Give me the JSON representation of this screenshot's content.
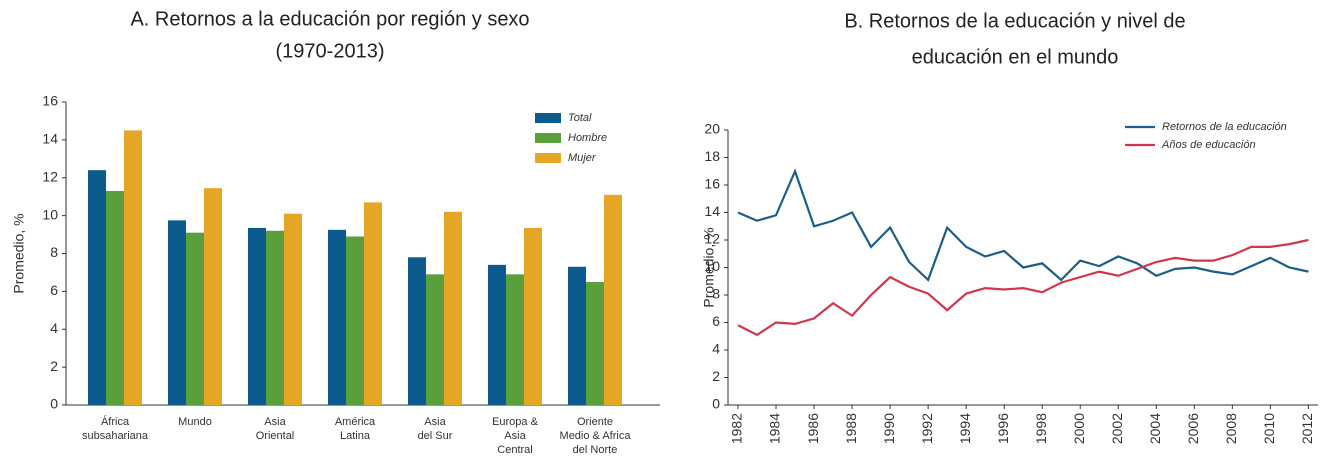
{
  "chart_data": [
    {
      "type": "bar",
      "title": [
        "A. Retornos a la educación por región y sexo",
        "(1970-2013)"
      ],
      "y_label": "Promedio, %",
      "categories": [
        [
          "África",
          "subsahariana"
        ],
        [
          "Mundo"
        ],
        [
          "Asia",
          "Oriental"
        ],
        [
          "América",
          "Latina"
        ],
        [
          "Asia",
          "del Sur"
        ],
        [
          "Europa &",
          "Asia",
          "Central"
        ],
        [
          "Oriente",
          "Medio & Africa",
          "del Norte"
        ]
      ],
      "series": [
        {
          "name": "Total",
          "color": "#0b5c8c",
          "values": [
            12.4,
            9.75,
            9.35,
            9.25,
            7.8,
            7.4,
            7.3
          ]
        },
        {
          "name": "Hombre",
          "color": "#5b9f3c",
          "values": [
            11.3,
            9.1,
            9.2,
            8.9,
            6.9,
            6.9,
            6.5
          ]
        },
        {
          "name": "Mujer",
          "color": "#e6a625",
          "values": [
            14.5,
            11.45,
            10.1,
            10.7,
            10.2,
            9.35,
            11.1
          ]
        }
      ],
      "ylim": [
        0,
        16
      ],
      "yticks": [
        0,
        2,
        4,
        6,
        8,
        10,
        12,
        14,
        16
      ],
      "legend": "upper right"
    },
    {
      "type": "line",
      "title": [
        "B. Retornos de la educación y nivel de",
        "educación en el mundo"
      ],
      "y_label": "Promedio, %",
      "x": [
        1982,
        1983,
        1984,
        1985,
        1986,
        1987,
        1988,
        1989,
        1990,
        1991,
        1992,
        1993,
        1994,
        1995,
        1996,
        1997,
        1998,
        1999,
        2000,
        2001,
        2002,
        2003,
        2004,
        2005,
        2006,
        2007,
        2008,
        2009,
        2010,
        2011,
        2012
      ],
      "series": [
        {
          "name": "Retornos de la educación",
          "color": "#1b5e8a",
          "values": [
            14,
            13.4,
            13.8,
            17,
            13,
            13.4,
            14,
            11.5,
            12.9,
            10.4,
            9.1,
            12.9,
            11.5,
            10.8,
            11.2,
            10,
            10.3,
            9.1,
            10.5,
            10.1,
            10.8,
            10.3,
            9.4,
            9.9,
            10,
            9.7,
            9.5,
            10.1,
            10.7,
            10,
            9.7
          ]
        },
        {
          "name": "Años de educación",
          "color": "#d2364b",
          "values": [
            5.8,
            5.1,
            6.0,
            5.9,
            6.3,
            7.4,
            6.5,
            8.0,
            9.3,
            8.6,
            8.1,
            6.9,
            8.1,
            8.5,
            8.4,
            8.5,
            8.2,
            8.9,
            9.3,
            9.7,
            9.4,
            9.9,
            10.4,
            10.7,
            10.5,
            10.5,
            10.9,
            11.5,
            11.5,
            11.7,
            12.0
          ]
        }
      ],
      "xlim": [
        1982,
        2012.4
      ],
      "xticks": [
        1982,
        1984,
        1986,
        1988,
        1990,
        1992,
        1994,
        1996,
        1998,
        2000,
        2002,
        2004,
        2006,
        2008,
        2010,
        2012
      ],
      "ylim": [
        0,
        20
      ],
      "yticks": [
        0,
        2,
        4,
        6,
        8,
        10,
        12,
        14,
        16,
        18,
        20
      ],
      "legend": "upper right"
    }
  ]
}
